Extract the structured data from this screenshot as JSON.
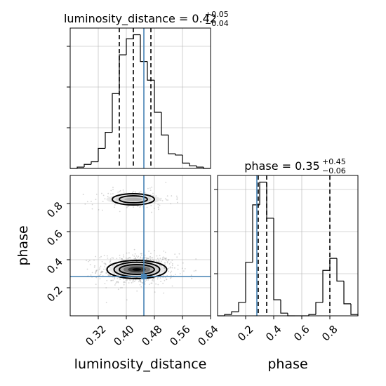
{
  "chart_data": {
    "type": "corner",
    "parameters": [
      "luminosity_distance",
      "phase"
    ],
    "truth": {
      "luminosity_distance": 0.45,
      "phase": 0.28
    },
    "colors": {
      "truth": "#4682b4",
      "hist": "#000000",
      "quantile": "#000000",
      "grid": "#b0b0b0"
    },
    "panels": [
      {
        "id": "hist-luminosity-distance",
        "kind": "hist1d",
        "param": "luminosity_distance",
        "title_main": "luminosity_distance = 0.42",
        "title_sup": "+0.05",
        "title_sub": "−0.04",
        "xlim": [
          0.24,
          0.64
        ],
        "ylim": [
          0,
          1.05
        ],
        "bin_edges": [
          0.24,
          0.26,
          0.28,
          0.3,
          0.32,
          0.34,
          0.36,
          0.38,
          0.4,
          0.42,
          0.44,
          0.46,
          0.48,
          0.5,
          0.52,
          0.54,
          0.56,
          0.58,
          0.6,
          0.62,
          0.64
        ],
        "counts": [
          0.0,
          0.01,
          0.03,
          0.05,
          0.15,
          0.27,
          0.56,
          0.85,
          0.97,
          1.0,
          0.8,
          0.66,
          0.42,
          0.25,
          0.11,
          0.1,
          0.04,
          0.02,
          0.01,
          0.0
        ],
        "quantiles": [
          0.38,
          0.42,
          0.47
        ],
        "show_x_ticklabels": false,
        "show_y_ticklabels": false
      },
      {
        "id": "hist-phase",
        "kind": "hist1d",
        "param": "phase",
        "title_main": "phase = 0.35",
        "title_sup": "+0.45",
        "title_sub": "−0.06",
        "xlim": [
          0.0,
          1.0
        ],
        "ylim": [
          0,
          1.05
        ],
        "bin_edges": [
          0.0,
          0.05,
          0.1,
          0.15,
          0.2,
          0.25,
          0.3,
          0.35,
          0.4,
          0.45,
          0.5,
          0.55,
          0.6,
          0.65,
          0.7,
          0.75,
          0.8,
          0.85,
          0.9,
          0.95,
          1.0
        ],
        "counts": [
          0.0,
          0.01,
          0.03,
          0.1,
          0.4,
          0.83,
          1.0,
          0.73,
          0.12,
          0.02,
          0.0,
          0.0,
          0.0,
          0.01,
          0.1,
          0.34,
          0.43,
          0.26,
          0.09,
          0.01
        ],
        "quantiles": [
          0.29,
          0.35,
          0.8
        ],
        "show_x_ticklabels": true,
        "xticks": [
          0.2,
          0.4,
          0.6,
          0.8
        ],
        "xtick_labels": [
          "0.2",
          "0.4",
          "0.6",
          "0.8"
        ],
        "show_y_ticklabels": false,
        "xlabel": "phase"
      },
      {
        "id": "contour-distance-phase",
        "kind": "hist2d",
        "xparam": "luminosity_distance",
        "yparam": "phase",
        "xlim": [
          0.24,
          0.64
        ],
        "ylim": [
          0.0,
          1.0
        ],
        "xticks": [
          0.32,
          0.4,
          0.48,
          0.56,
          0.64
        ],
        "xtick_labels": [
          "0.32",
          "0.40",
          "0.48",
          "0.56",
          "0.64"
        ],
        "yticks": [
          0.2,
          0.4,
          0.6,
          0.8
        ],
        "ytick_labels": [
          "0.2",
          "0.4",
          "0.6",
          "0.8"
        ],
        "xlabel": "luminosity_distance",
        "ylabel": "phase",
        "modes": [
          {
            "x": 0.43,
            "y": 0.33,
            "sx": 0.035,
            "sy": 0.035,
            "weight": 0.78
          },
          {
            "x": 0.42,
            "y": 0.83,
            "sx": 0.035,
            "sy": 0.022,
            "weight": 0.22
          }
        ],
        "contour_levels": [
          {
            "mode": 0,
            "rx": 0.05,
            "ry": 0.035
          },
          {
            "mode": 0,
            "rx": 0.065,
            "ry": 0.052
          },
          {
            "mode": 0,
            "rx": 0.085,
            "ry": 0.065
          },
          {
            "mode": 1,
            "rx": 0.04,
            "ry": 0.025
          },
          {
            "mode": 1,
            "rx": 0.06,
            "ry": 0.04
          }
        ]
      }
    ]
  }
}
